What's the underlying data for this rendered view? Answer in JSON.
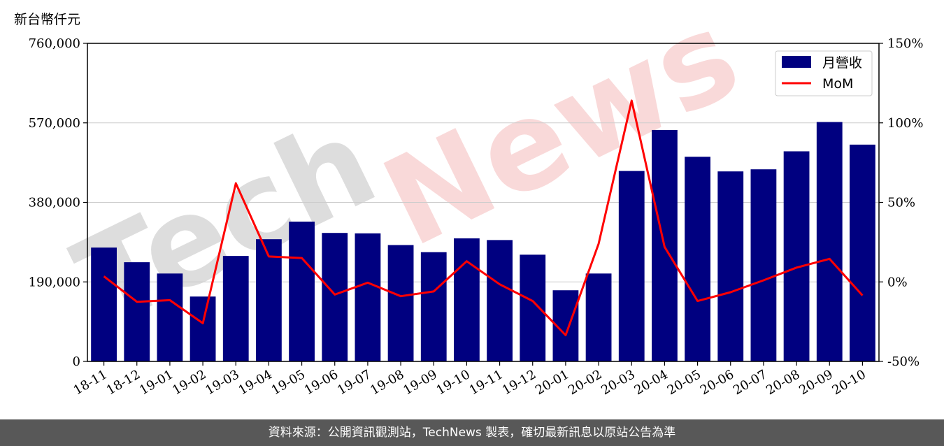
{
  "page": {
    "unit_label": "新台幣仟元"
  },
  "watermark": {
    "text": "TechNews",
    "tech_color": "#dddddd",
    "news_color": "#f9d9d9"
  },
  "footer": {
    "source_text": "資料來源：公開資訊觀測站，TechNews 製表，確切最新訊息以原站公告為準"
  },
  "chart_data": {
    "type": "bar+line",
    "categories": [
      "18-11",
      "18-12",
      "19-01",
      "19-02",
      "19-03",
      "19-04",
      "19-05",
      "19-06",
      "19-07",
      "19-08",
      "19-09",
      "19-10",
      "19-11",
      "19-12",
      "20-01",
      "20-02",
      "20-03",
      "20-04",
      "20-05",
      "20-06",
      "20-07",
      "20-08",
      "20-09",
      "20-10"
    ],
    "series": [
      {
        "name": "月營收",
        "kind": "bar",
        "axis": "left",
        "color": "#000080",
        "values": [
          272000,
          237000,
          210000,
          155000,
          252000,
          292000,
          334000,
          307000,
          306000,
          278000,
          261000,
          294000,
          290000,
          255000,
          170000,
          210000,
          455000,
          553000,
          489000,
          454000,
          459000,
          502000,
          572000,
          518000
        ]
      },
      {
        "name": "MoM",
        "kind": "line",
        "axis": "right",
        "color": "#ff0000",
        "unit": "%",
        "values": [
          3.5,
          -12.5,
          -11.5,
          -26,
          62,
          16,
          15,
          -8,
          -0.5,
          -9,
          -6,
          13,
          -1.5,
          -12,
          -33.5,
          24,
          114,
          22,
          -12,
          -6.5,
          1,
          9,
          14.5,
          -8.5
        ]
      }
    ],
    "yleft": {
      "ticks": [
        "0",
        "190,000",
        "380,000",
        "570,000",
        "760,000"
      ],
      "ylim": [
        0,
        760000
      ]
    },
    "yright": {
      "ticks": [
        "-50%",
        "0%",
        "50%",
        "100%",
        "150%"
      ],
      "ylim": [
        -50,
        150
      ]
    },
    "grid": "horizontal",
    "legend_position": "top-right"
  }
}
